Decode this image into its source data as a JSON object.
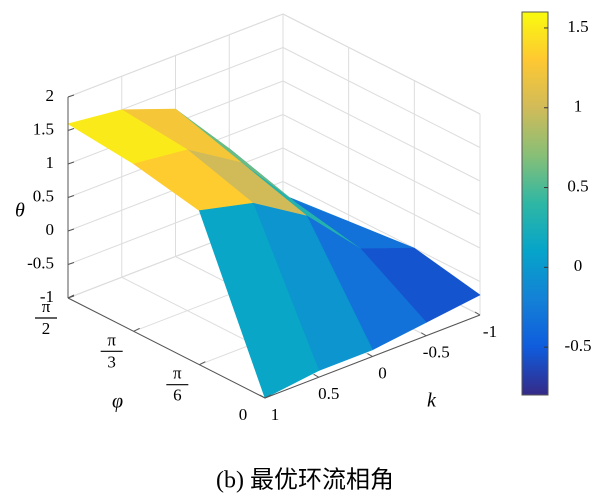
{
  "chart_data": {
    "type": "surface",
    "title": "(b) 最优环流相角",
    "xlabel": "k",
    "ylabel": "φ",
    "zlabel": "θ",
    "colormap": "parula",
    "k": [
      1,
      0.5,
      0,
      -0.5,
      -1
    ],
    "phi": [
      0,
      0.5236,
      1.0472,
      1.5708
    ],
    "z": [
      [
        -1,
        -0.9,
        -0.9,
        -0.8,
        -0.7
      ],
      [
        1.3,
        1.1,
        0.6,
        -0.2,
        -0.5
      ],
      [
        1.5,
        1.4,
        0.9,
        0.0,
        -0.6
      ],
      [
        1.6,
        1.5,
        1.2,
        0.3,
        -0.7
      ]
    ],
    "xlim": [
      1,
      -1
    ],
    "xticks": [
      1,
      0.5,
      0,
      -0.5,
      -1
    ],
    "ylim": [
      0,
      1.5708
    ],
    "yticks": [
      0,
      {
        "value": 0.5236,
        "label": "π/6"
      },
      {
        "value": 1.0472,
        "label": "π/3"
      },
      {
        "value": 1.5708,
        "label": "π/2"
      }
    ],
    "zlim": [
      -1,
      2
    ],
    "zticks": [
      -1,
      -0.5,
      0,
      0.5,
      1,
      1.5,
      2
    ],
    "clim": [
      -0.8,
      1.6
    ],
    "cticks": [
      -0.5,
      0,
      0.5,
      1,
      1.5
    ],
    "grid": true
  }
}
